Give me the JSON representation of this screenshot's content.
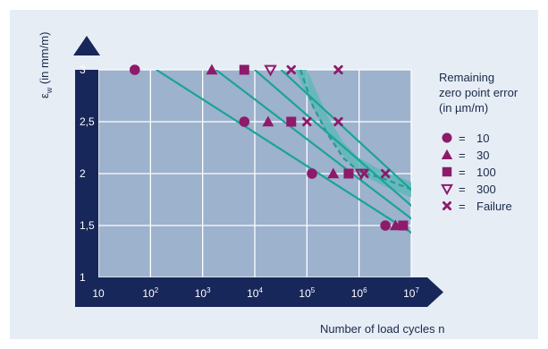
{
  "chart_data": {
    "type": "scatter",
    "title": "",
    "xlabel": "Number of load cycles n",
    "ylabel": "ε_w (in mm/m)",
    "ylabel_main": "ε",
    "ylabel_sub": "w",
    "ylabel_rest": " (in mm/m)",
    "x_scale": "log",
    "xlim": [
      10,
      10000000
    ],
    "ylim": [
      1,
      3
    ],
    "x_ticks": [
      {
        "value": 10,
        "label": "10",
        "base": "10",
        "exp": ""
      },
      {
        "value": 100,
        "label": "10²",
        "base": "10",
        "exp": "2"
      },
      {
        "value": 1000,
        "label": "10³",
        "base": "10",
        "exp": "3"
      },
      {
        "value": 10000,
        "label": "10⁴",
        "base": "10",
        "exp": "4"
      },
      {
        "value": 100000,
        "label": "10⁵",
        "base": "10",
        "exp": "5"
      },
      {
        "value": 1000000,
        "label": "10⁶",
        "base": "10",
        "exp": "6"
      },
      {
        "value": 10000000,
        "label": "10⁷",
        "base": "10",
        "exp": "7"
      }
    ],
    "y_ticks": [
      {
        "value": 1,
        "label": "1"
      },
      {
        "value": 1.5,
        "label": "1,5"
      },
      {
        "value": 2,
        "label": "2"
      },
      {
        "value": 2.5,
        "label": "2,5"
      },
      {
        "value": 3,
        "label": "3"
      }
    ],
    "grid": true,
    "legend": {
      "placement": "right",
      "title_lines": [
        "Remaining",
        "zero point error",
        "(in µm/m)"
      ],
      "equals": "=",
      "items": [
        {
          "marker": "circle",
          "label": "10"
        },
        {
          "marker": "triangle",
          "label": "30"
        },
        {
          "marker": "square",
          "label": "100"
        },
        {
          "marker": "triangle-down-open",
          "label": "300"
        },
        {
          "marker": "cross",
          "label": "Failure"
        }
      ]
    },
    "series": [
      {
        "marker": "circle",
        "points": [
          [
            50,
            3
          ],
          [
            6300,
            2.5
          ],
          [
            125000,
            2
          ],
          [
            3200000,
            1.5
          ]
        ]
      },
      {
        "marker": "triangle",
        "points": [
          [
            1500,
            3
          ],
          [
            18000,
            2.5
          ],
          [
            320000,
            2
          ],
          [
            5000000,
            1.5
          ]
        ]
      },
      {
        "marker": "square",
        "points": [
          [
            6300,
            3
          ],
          [
            50000,
            2.5
          ],
          [
            630000,
            2
          ],
          [
            7000000,
            1.5
          ]
        ]
      },
      {
        "marker": "triangle-down-open",
        "points": [
          [
            20000,
            3
          ],
          [
            1100000,
            2
          ]
        ]
      },
      {
        "marker": "cross",
        "points": [
          [
            50000,
            3
          ],
          [
            400000,
            3
          ],
          [
            100000,
            2.5
          ],
          [
            400000,
            2.5
          ],
          [
            1250000,
            2
          ],
          [
            3200000,
            2
          ]
        ]
      }
    ],
    "trend_lines": [
      {
        "points": [
          [
            130,
            3
          ],
          [
            12500000,
            1.4
          ]
        ]
      },
      {
        "points": [
          [
            1800,
            3
          ],
          [
            12500000,
            1.53
          ]
        ]
      },
      {
        "points": [
          [
            10000,
            3
          ],
          [
            12500000,
            1.65
          ]
        ]
      },
      {
        "points": [
          [
            32000,
            3
          ],
          [
            12500000,
            1.8
          ]
        ]
      }
    ],
    "failure_band": {
      "upper": [
        [
          100000,
          3
        ],
        [
          150000,
          2.8
        ],
        [
          250000,
          2.55
        ],
        [
          500000,
          2.3
        ],
        [
          1000000,
          2.15
        ],
        [
          3000000,
          2.02
        ],
        [
          12500000,
          1.9
        ]
      ],
      "lower": [
        [
          12500000,
          1.75
        ],
        [
          3000000,
          1.88
        ],
        [
          1000000,
          2.0
        ],
        [
          450000,
          2.2
        ],
        [
          200000,
          2.45
        ],
        [
          100000,
          2.75
        ],
        [
          60000,
          3
        ]
      ],
      "dashed_center": [
        [
          75000,
          3
        ],
        [
          130000,
          2.65
        ],
        [
          250000,
          2.38
        ],
        [
          500000,
          2.15
        ],
        [
          1000000,
          2.02
        ],
        [
          3000000,
          1.95
        ],
        [
          12500000,
          1.83
        ]
      ]
    },
    "colors": {
      "plot_bg": "#9db2cc",
      "grid": "#ffffff",
      "axis": "#18275a",
      "marker": "#8e1a6b",
      "trend": "#1aa39a",
      "band": "#5fb7ba",
      "band_line": "#2a9a8e",
      "panel_bg": "#e6edf5",
      "text": "#1a2a4a"
    }
  }
}
